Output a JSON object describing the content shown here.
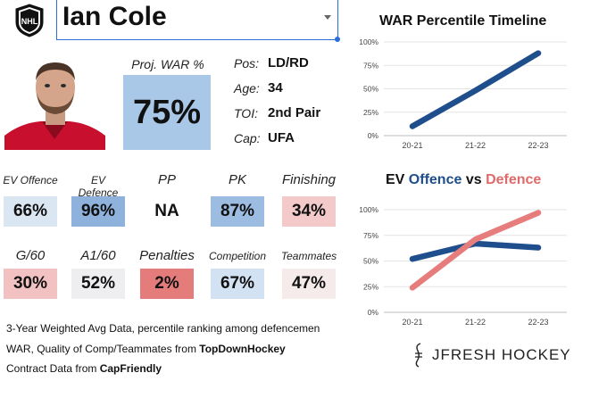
{
  "player": {
    "name": "Ian Cole",
    "proj_war_label": "Proj. WAR %",
    "proj_war_value": "75%",
    "bio": [
      {
        "label": "Pos:",
        "value": "LD/RD"
      },
      {
        "label": "Age:",
        "value": "34"
      },
      {
        "label": "TOI:",
        "value": "2nd Pair"
      },
      {
        "label": "Cap:",
        "value": "UFA"
      }
    ]
  },
  "stats_row1": [
    {
      "label": "EV Offence",
      "value": "66%",
      "color": "#dbe6f3"
    },
    {
      "label": "EV Defence",
      "value": "96%",
      "color": "#8fb2dd"
    },
    {
      "label": "PP",
      "value": "NA",
      "color": "#ffffff"
    },
    {
      "label": "PK",
      "value": "87%",
      "color": "#9dbce2"
    },
    {
      "label": "Finishing",
      "value": "34%",
      "color": "#f3c9c9"
    }
  ],
  "stats_row2": [
    {
      "label": "G/60",
      "value": "30%",
      "color": "#f2c2c2"
    },
    {
      "label": "A1/60",
      "value": "52%",
      "color": "#eeeef1"
    },
    {
      "label": "Penalties",
      "value": "2%",
      "color": "#e57c7c"
    },
    {
      "label": "Competition",
      "value": "67%",
      "color": "#d3e2f2"
    },
    {
      "label": "Teammates",
      "value": "47%",
      "color": "#f6ebeb"
    }
  ],
  "footnotes": {
    "line1": "3-Year Weighted Avg Data, percentile ranking among defencemen",
    "line2_prefix": "WAR, Quality of Comp/Teammates from ",
    "line2_source": "TopDownHockey",
    "line3_prefix": "Contract Data from ",
    "line3_source": "CapFriendly"
  },
  "branding": {
    "text": "JFRESH HOCKEY"
  },
  "chart_data": [
    {
      "type": "line",
      "title": "WAR Percentile Timeline",
      "categories": [
        "20-21",
        "21-22",
        "22-23"
      ],
      "series": [
        {
          "values": [
            10,
            48,
            88
          ],
          "color": "#1f4e8c"
        }
      ],
      "ylim": [
        0,
        100
      ],
      "yticks": [
        "0%",
        "25%",
        "50%",
        "75%",
        "100%"
      ],
      "grid": true
    },
    {
      "type": "line",
      "title_parts": {
        "ev": "EV ",
        "offence": "Offence",
        "vs": " vs ",
        "defence": "Defence"
      },
      "categories": [
        "20-21",
        "21-22",
        "22-23"
      ],
      "series": [
        {
          "name": "Offence",
          "values": [
            52,
            67,
            63
          ],
          "color": "#1f4e8c"
        },
        {
          "name": "Defence",
          "values": [
            24,
            71,
            97
          ],
          "color": "#e77c7c"
        }
      ],
      "ylim": [
        0,
        100
      ],
      "yticks": [
        "0%",
        "25%",
        "50%",
        "75%",
        "100%"
      ],
      "grid": true
    }
  ]
}
